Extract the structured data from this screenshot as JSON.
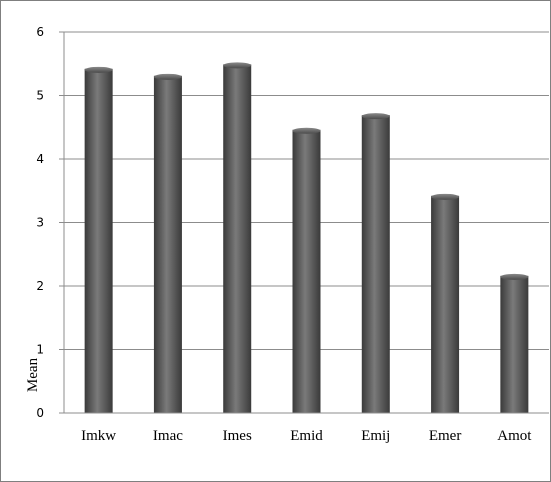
{
  "chart_data": {
    "type": "bar",
    "title": "",
    "xlabel": "",
    "ylabel": "Mean",
    "categories": [
      "Imkw",
      "Imac",
      "Imes",
      "Emid",
      "Emij",
      "Emer",
      "Amot"
    ],
    "values": [
      5.42,
      5.31,
      5.49,
      4.46,
      4.69,
      3.42,
      2.16
    ],
    "ylim": [
      0,
      6
    ],
    "yticks": [
      "0",
      "1",
      "2",
      "3",
      "4",
      "5",
      "6"
    ],
    "grid": true,
    "legend": "none",
    "colors": {
      "bar_dark": "#3a3a3a",
      "bar_light": "#7a7a7a",
      "grid": "#8c8c8c",
      "frame": "#7f7f7f"
    }
  }
}
